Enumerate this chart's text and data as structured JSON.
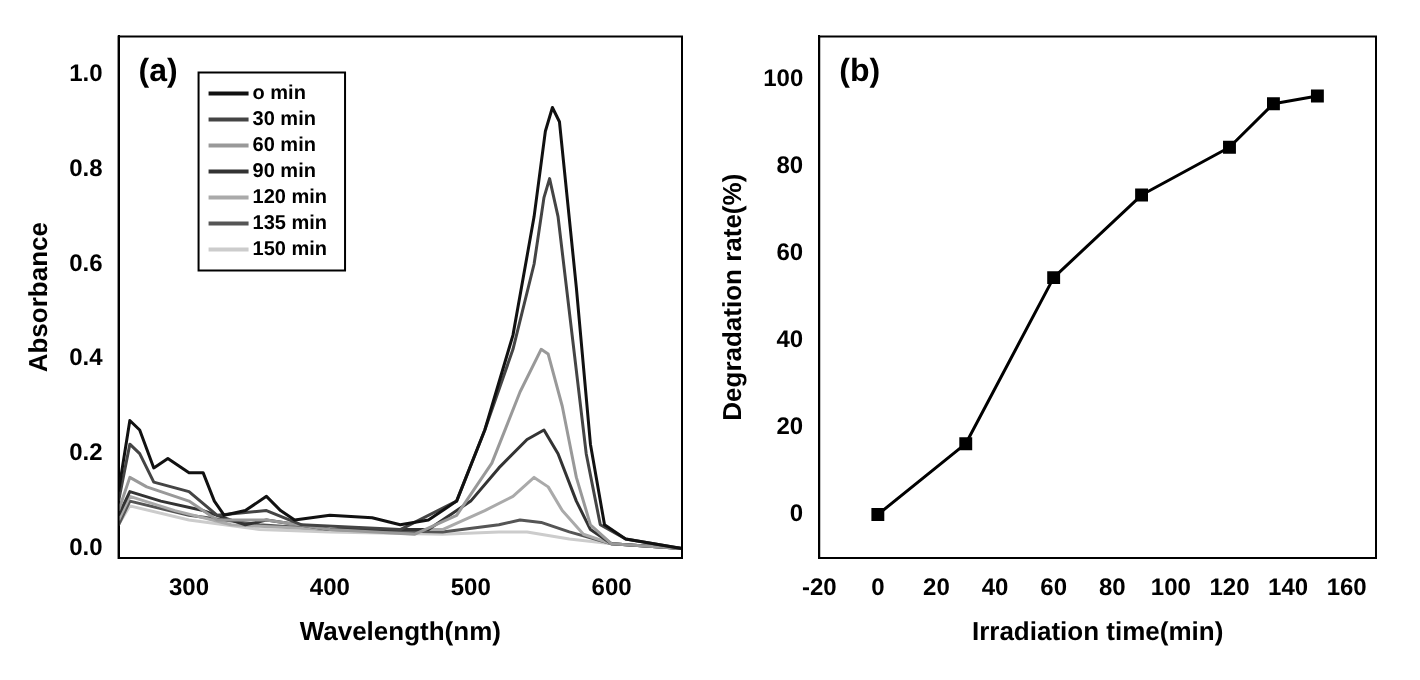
{
  "chart_data": [
    {
      "type": "line",
      "xlabel": "Wavelength(nm)",
      "ylabel": "Absorbance",
      "annotations": [
        "(a)"
      ],
      "xlim": [
        250,
        650
      ],
      "ylim": [
        -0.02,
        1.08
      ],
      "xticks": [
        300,
        400,
        500,
        600
      ],
      "yticks": [
        {
          "value": 0,
          "label": "0.0"
        },
        0.2,
        0.4,
        0.6,
        0.8,
        {
          "value": 1,
          "label": "1.0"
        }
      ],
      "grid": false,
      "legend": "top left",
      "marker": "none",
      "line_style": "solid",
      "series": [
        {
          "name": "o min",
          "color": "#111111",
          "x": [
            250,
            258,
            265,
            275,
            285,
            300,
            310,
            318,
            325,
            340,
            355,
            365,
            375,
            400,
            430,
            450,
            470,
            490,
            510,
            530,
            545,
            553,
            558,
            563,
            575,
            585,
            595,
            610,
            630,
            650
          ],
          "values": [
            0.12,
            0.27,
            0.25,
            0.17,
            0.19,
            0.16,
            0.16,
            0.1,
            0.07,
            0.08,
            0.11,
            0.08,
            0.06,
            0.07,
            0.065,
            0.05,
            0.06,
            0.1,
            0.25,
            0.45,
            0.7,
            0.88,
            0.93,
            0.9,
            0.55,
            0.22,
            0.05,
            0.02,
            0.01,
            0.0
          ]
        },
        {
          "name": "30 min",
          "color": "#444444",
          "x": [
            250,
            258,
            265,
            275,
            300,
            320,
            355,
            380,
            450,
            490,
            510,
            530,
            545,
            552,
            556,
            562,
            572,
            582,
            592,
            610,
            650
          ],
          "values": [
            0.1,
            0.22,
            0.2,
            0.14,
            0.12,
            0.07,
            0.08,
            0.05,
            0.04,
            0.1,
            0.25,
            0.42,
            0.6,
            0.74,
            0.78,
            0.7,
            0.45,
            0.2,
            0.05,
            0.02,
            0.0
          ]
        },
        {
          "name": "60 min",
          "color": "#999999",
          "x": [
            250,
            258,
            270,
            300,
            320,
            355,
            400,
            460,
            490,
            515,
            535,
            550,
            555,
            565,
            575,
            585,
            600,
            650
          ],
          "values": [
            0.08,
            0.15,
            0.13,
            0.1,
            0.06,
            0.06,
            0.04,
            0.03,
            0.07,
            0.18,
            0.33,
            0.42,
            0.41,
            0.3,
            0.15,
            0.05,
            0.01,
            0.0
          ]
        },
        {
          "name": "90 min",
          "color": "#333333",
          "x": [
            250,
            258,
            280,
            310,
            340,
            355,
            400,
            470,
            500,
            520,
            540,
            552,
            562,
            575,
            585,
            600,
            650
          ],
          "values": [
            0.07,
            0.12,
            0.1,
            0.08,
            0.05,
            0.06,
            0.04,
            0.04,
            0.1,
            0.17,
            0.23,
            0.25,
            0.2,
            0.1,
            0.04,
            0.01,
            0.0
          ]
        },
        {
          "name": "120 min",
          "color": "#aaaaaa",
          "x": [
            250,
            258,
            290,
            330,
            400,
            480,
            510,
            530,
            545,
            555,
            565,
            580,
            600,
            650
          ],
          "values": [
            0.06,
            0.11,
            0.08,
            0.05,
            0.04,
            0.04,
            0.08,
            0.11,
            0.15,
            0.13,
            0.08,
            0.03,
            0.01,
            0.0
          ]
        },
        {
          "name": "135 min",
          "color": "#555555",
          "x": [
            250,
            258,
            300,
            350,
            400,
            480,
            520,
            535,
            550,
            570,
            600,
            650
          ],
          "values": [
            0.05,
            0.1,
            0.07,
            0.05,
            0.04,
            0.035,
            0.05,
            0.06,
            0.055,
            0.035,
            0.01,
            0.0
          ]
        },
        {
          "name": "150 min",
          "color": "#cccccc",
          "x": [
            250,
            258,
            300,
            350,
            400,
            480,
            520,
            540,
            570,
            600,
            650
          ],
          "values": [
            0.05,
            0.09,
            0.06,
            0.04,
            0.035,
            0.03,
            0.035,
            0.035,
            0.02,
            0.01,
            0.0
          ]
        }
      ]
    },
    {
      "type": "line",
      "xlabel": "Irradiation time(min)",
      "ylabel": "Degradation rate(%)",
      "annotations": [
        "(b)"
      ],
      "xlim": [
        -20,
        170
      ],
      "ylim": [
        -10,
        110
      ],
      "xticks": [
        -20,
        0,
        20,
        40,
        60,
        80,
        100,
        120,
        140,
        160
      ],
      "yticks": [
        0,
        20,
        40,
        60,
        80,
        100
      ],
      "grid": false,
      "marker": "square",
      "line_style": "solid",
      "series": [
        {
          "color": "#000000",
          "x": [
            0,
            30,
            60,
            90,
            120,
            135,
            150
          ],
          "values": [
            0,
            16.3,
            54.5,
            73.5,
            84.5,
            94.5,
            96.3
          ]
        }
      ]
    }
  ]
}
